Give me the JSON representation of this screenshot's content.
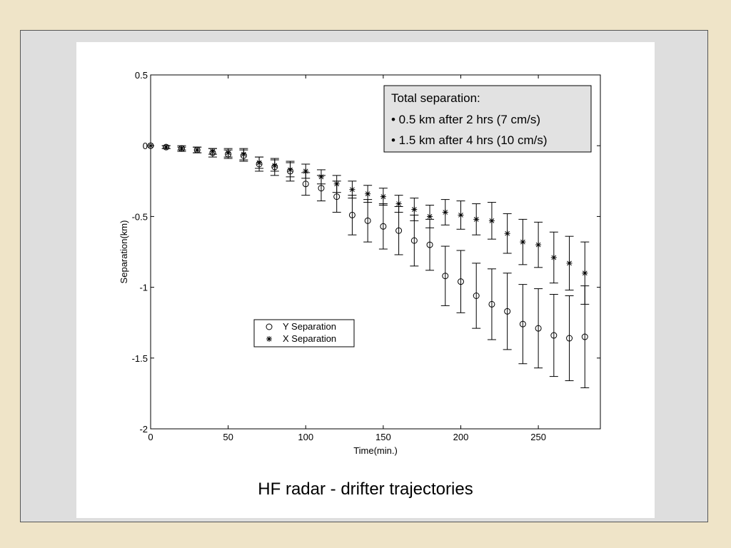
{
  "caption": "HF radar - drifter trajectories",
  "chart_data": {
    "type": "scatter",
    "title": "",
    "xlabel": "Time(min.)",
    "ylabel": "Separation(km)",
    "xlim": [
      0,
      290
    ],
    "ylim": [
      -2,
      0.5
    ],
    "xticks": [
      0,
      50,
      100,
      150,
      200,
      250
    ],
    "yticks": [
      0.5,
      0,
      -0.5,
      -1,
      -1.5,
      -2
    ],
    "xtick_labels": [
      "0",
      "50",
      "100",
      "150",
      "200",
      "250"
    ],
    "ytick_labels": [
      "0.5",
      "0",
      "-0.5",
      "-1",
      "-1.5",
      "-2"
    ],
    "x": [
      0,
      10,
      20,
      30,
      40,
      50,
      60,
      70,
      80,
      90,
      100,
      110,
      120,
      130,
      140,
      150,
      160,
      170,
      180,
      190,
      200,
      210,
      220,
      230,
      240,
      250,
      260,
      270,
      280
    ],
    "series": [
      {
        "name": "Y Separation",
        "marker": "circle",
        "values": [
          0,
          -0.01,
          -0.02,
          -0.03,
          -0.05,
          -0.06,
          -0.07,
          -0.13,
          -0.15,
          -0.18,
          -0.27,
          -0.3,
          -0.36,
          -0.49,
          -0.53,
          -0.57,
          -0.6,
          -0.67,
          -0.7,
          -0.92,
          -0.96,
          -1.06,
          -1.12,
          -1.17,
          -1.26,
          -1.29,
          -1.34,
          -1.36,
          -1.35
        ],
        "error": [
          0,
          0.01,
          0.02,
          0.02,
          0.03,
          0.03,
          0.04,
          0.05,
          0.06,
          0.07,
          0.08,
          0.09,
          0.11,
          0.14,
          0.15,
          0.16,
          0.17,
          0.18,
          0.18,
          0.21,
          0.22,
          0.23,
          0.25,
          0.27,
          0.28,
          0.28,
          0.29,
          0.3,
          0.36
        ]
      },
      {
        "name": "X Separation",
        "marker": "star",
        "values": [
          0,
          -0.01,
          -0.02,
          -0.03,
          -0.04,
          -0.05,
          -0.06,
          -0.12,
          -0.14,
          -0.17,
          -0.18,
          -0.22,
          -0.27,
          -0.31,
          -0.34,
          -0.36,
          -0.41,
          -0.45,
          -0.5,
          -0.47,
          -0.49,
          -0.52,
          -0.53,
          -0.62,
          -0.68,
          -0.7,
          -0.79,
          -0.83,
          -0.9
        ],
        "error": [
          0,
          0.01,
          0.01,
          0.02,
          0.02,
          0.03,
          0.04,
          0.04,
          0.04,
          0.05,
          0.05,
          0.05,
          0.06,
          0.06,
          0.06,
          0.06,
          0.06,
          0.08,
          0.08,
          0.09,
          0.1,
          0.11,
          0.13,
          0.14,
          0.16,
          0.16,
          0.18,
          0.19,
          0.22
        ]
      }
    ],
    "legend": {
      "placement": "lower-left",
      "entries": [
        "Y Separation",
        "X Separation"
      ]
    },
    "annotation": {
      "lines": [
        "Total separation:",
        "• 0.5 km after 2 hrs (7 cm/s)",
        "• 1.5 km after 4 hrs (10 cm/s)"
      ],
      "placement": "top-right"
    },
    "grid": false
  }
}
